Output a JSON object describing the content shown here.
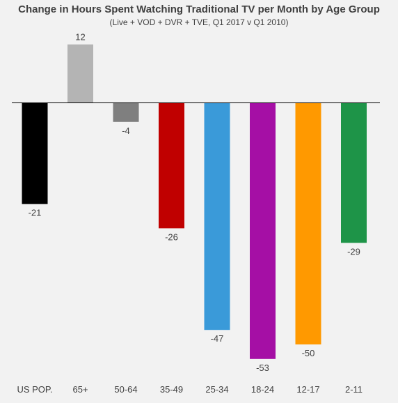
{
  "chart_data": {
    "type": "bar",
    "title": "Change in Hours Spent Watching Traditional TV per Month by Age Group",
    "subtitle": "(Live + VOD + DVR + TVE, Q1 2017 v Q1 2010)",
    "categories": [
      "US POP.",
      "65+",
      "50-64",
      "35-49",
      "25-34",
      "18-24",
      "12-17",
      "2-11"
    ],
    "values": [
      -21,
      12,
      -4,
      -26,
      -47,
      -53,
      -50,
      -29
    ],
    "data_labels": [
      "-21",
      "12",
      "-4",
      "-26",
      "-47",
      "-53",
      "-50",
      "-29"
    ],
    "colors": [
      "#000000",
      "#b4b4b4",
      "#7f7f7f",
      "#c00000",
      "#3a9ad9",
      "#a50fa5",
      "#ff9900",
      "#1e9448"
    ],
    "ylim": [
      -53,
      12
    ],
    "grid": false,
    "legend": "none"
  }
}
